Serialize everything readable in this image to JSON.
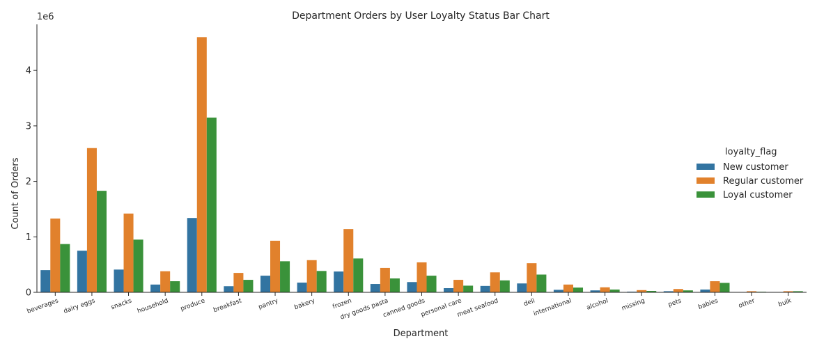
{
  "chart_data": {
    "type": "bar",
    "title": "Department Orders by User Loyalty Status Bar Chart",
    "xlabel": "Department",
    "ylabel": "Count of Orders",
    "y_offset_text": "1e6",
    "ylim": [
      0,
      4830000
    ],
    "yticks": [
      0,
      1000000,
      2000000,
      3000000,
      4000000
    ],
    "ytick_labels": [
      "0",
      "1",
      "2",
      "3",
      "4"
    ],
    "grid": false,
    "legend_title": "loyalty_flag",
    "legend_position": "right",
    "categories": [
      "beverages",
      "dairy eggs",
      "snacks",
      "household",
      "produce",
      "breakfast",
      "pantry",
      "bakery",
      "frozen",
      "dry goods pasta",
      "canned goods",
      "personal care",
      "meat seafood",
      "deli",
      "international",
      "alcohol",
      "missing",
      "pets",
      "babies",
      "other",
      "bulk"
    ],
    "series": [
      {
        "name": "New customer",
        "color": "#3274a1",
        "values": [
          400000,
          750000,
          410000,
          140000,
          1340000,
          110000,
          300000,
          175000,
          375000,
          150000,
          185000,
          75000,
          115000,
          160000,
          45000,
          35000,
          12000,
          20000,
          50000,
          6000,
          5000
        ]
      },
      {
        "name": "Regular customer",
        "color": "#e1812c",
        "values": [
          1330000,
          2600000,
          1420000,
          380000,
          4600000,
          350000,
          930000,
          580000,
          1140000,
          440000,
          540000,
          225000,
          360000,
          525000,
          140000,
          90000,
          40000,
          60000,
          200000,
          20000,
          20000
        ]
      },
      {
        "name": "Loyal customer",
        "color": "#3a923a",
        "values": [
          870000,
          1830000,
          950000,
          200000,
          3150000,
          225000,
          560000,
          385000,
          610000,
          250000,
          300000,
          120000,
          215000,
          320000,
          85000,
          50000,
          25000,
          35000,
          170000,
          10000,
          20000
        ]
      }
    ]
  }
}
